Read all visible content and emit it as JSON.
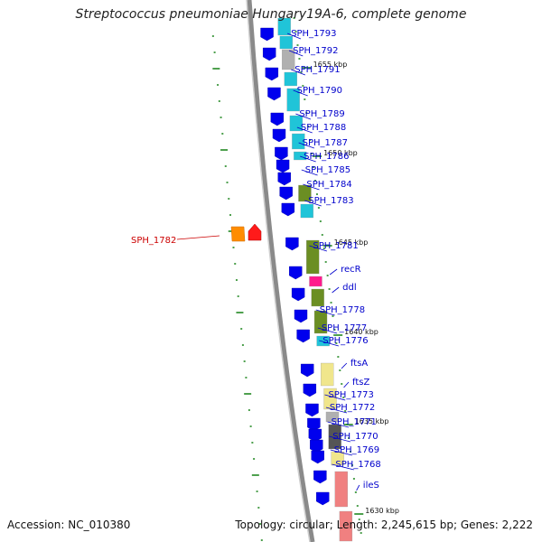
{
  "title": "Streptococcus pneumoniae Hungary19A-6, complete genome",
  "footer": {
    "accession": "Accession: NC_010380",
    "summary": "Topology: circular; Length: 2,245,615 bp; Genes: 2,222"
  },
  "colors": {
    "gene_label": "#0000cc",
    "highlight_label": "#cc0000",
    "backbone": "#999999",
    "tick": "#228822"
  },
  "kbp_markers": [
    "1655 kbp",
    "1650 kbp",
    "1645 kbp",
    "1640 kbp",
    "1635 kbp",
    "1630 kbp"
  ],
  "genes": [
    "SPH_1793",
    "SPH_1792",
    "SPH_1791",
    "SPH_1790",
    "SPH_1789",
    "SPH_1788",
    "SPH_1787",
    "SPH_1786",
    "SPH_1785",
    "SPH_1784",
    "SPH_1783",
    "SPH_1781",
    "recR",
    "ddl",
    "SPH_1778",
    "SPH_1777",
    "SPH_1776",
    "ftsA",
    "ftsZ",
    "SPH_1773",
    "SPH_1772",
    "SPH_1771",
    "SPH_1770",
    "SPH_1769",
    "SPH_1768",
    "ileS"
  ],
  "highlight_gene": "SPH_1782"
}
